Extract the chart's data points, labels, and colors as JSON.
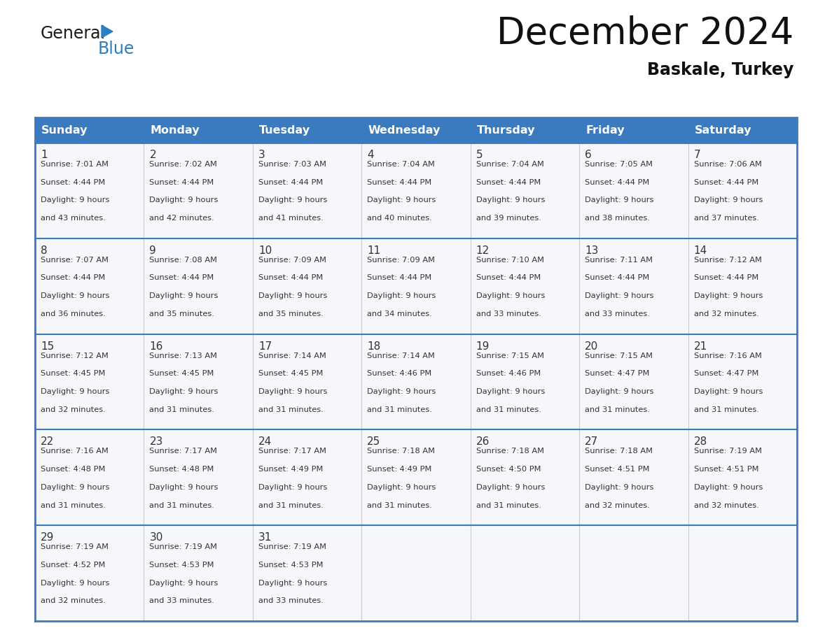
{
  "title": "December 2024",
  "subtitle": "Baskale, Turkey",
  "header_bg_color": "#3a7abf",
  "header_text_color": "#ffffff",
  "border_color": "#3a7abf",
  "row_separator_color": "#3a7abf",
  "col_separator_color": "#cccccc",
  "cell_bg_color": "#f5f7fa",
  "text_color": "#333333",
  "days_of_week": [
    "Sunday",
    "Monday",
    "Tuesday",
    "Wednesday",
    "Thursday",
    "Friday",
    "Saturday"
  ],
  "calendar_data": [
    [
      {
        "day": 1,
        "sunrise": "7:01 AM",
        "sunset": "4:44 PM",
        "daylight_hours": 9,
        "daylight_minutes": 43
      },
      {
        "day": 2,
        "sunrise": "7:02 AM",
        "sunset": "4:44 PM",
        "daylight_hours": 9,
        "daylight_minutes": 42
      },
      {
        "day": 3,
        "sunrise": "7:03 AM",
        "sunset": "4:44 PM",
        "daylight_hours": 9,
        "daylight_minutes": 41
      },
      {
        "day": 4,
        "sunrise": "7:04 AM",
        "sunset": "4:44 PM",
        "daylight_hours": 9,
        "daylight_minutes": 40
      },
      {
        "day": 5,
        "sunrise": "7:04 AM",
        "sunset": "4:44 PM",
        "daylight_hours": 9,
        "daylight_minutes": 39
      },
      {
        "day": 6,
        "sunrise": "7:05 AM",
        "sunset": "4:44 PM",
        "daylight_hours": 9,
        "daylight_minutes": 38
      },
      {
        "day": 7,
        "sunrise": "7:06 AM",
        "sunset": "4:44 PM",
        "daylight_hours": 9,
        "daylight_minutes": 37
      }
    ],
    [
      {
        "day": 8,
        "sunrise": "7:07 AM",
        "sunset": "4:44 PM",
        "daylight_hours": 9,
        "daylight_minutes": 36
      },
      {
        "day": 9,
        "sunrise": "7:08 AM",
        "sunset": "4:44 PM",
        "daylight_hours": 9,
        "daylight_minutes": 35
      },
      {
        "day": 10,
        "sunrise": "7:09 AM",
        "sunset": "4:44 PM",
        "daylight_hours": 9,
        "daylight_minutes": 35
      },
      {
        "day": 11,
        "sunrise": "7:09 AM",
        "sunset": "4:44 PM",
        "daylight_hours": 9,
        "daylight_minutes": 34
      },
      {
        "day": 12,
        "sunrise": "7:10 AM",
        "sunset": "4:44 PM",
        "daylight_hours": 9,
        "daylight_minutes": 33
      },
      {
        "day": 13,
        "sunrise": "7:11 AM",
        "sunset": "4:44 PM",
        "daylight_hours": 9,
        "daylight_minutes": 33
      },
      {
        "day": 14,
        "sunrise": "7:12 AM",
        "sunset": "4:44 PM",
        "daylight_hours": 9,
        "daylight_minutes": 32
      }
    ],
    [
      {
        "day": 15,
        "sunrise": "7:12 AM",
        "sunset": "4:45 PM",
        "daylight_hours": 9,
        "daylight_minutes": 32
      },
      {
        "day": 16,
        "sunrise": "7:13 AM",
        "sunset": "4:45 PM",
        "daylight_hours": 9,
        "daylight_minutes": 31
      },
      {
        "day": 17,
        "sunrise": "7:14 AM",
        "sunset": "4:45 PM",
        "daylight_hours": 9,
        "daylight_minutes": 31
      },
      {
        "day": 18,
        "sunrise": "7:14 AM",
        "sunset": "4:46 PM",
        "daylight_hours": 9,
        "daylight_minutes": 31
      },
      {
        "day": 19,
        "sunrise": "7:15 AM",
        "sunset": "4:46 PM",
        "daylight_hours": 9,
        "daylight_minutes": 31
      },
      {
        "day": 20,
        "sunrise": "7:15 AM",
        "sunset": "4:47 PM",
        "daylight_hours": 9,
        "daylight_minutes": 31
      },
      {
        "day": 21,
        "sunrise": "7:16 AM",
        "sunset": "4:47 PM",
        "daylight_hours": 9,
        "daylight_minutes": 31
      }
    ],
    [
      {
        "day": 22,
        "sunrise": "7:16 AM",
        "sunset": "4:48 PM",
        "daylight_hours": 9,
        "daylight_minutes": 31
      },
      {
        "day": 23,
        "sunrise": "7:17 AM",
        "sunset": "4:48 PM",
        "daylight_hours": 9,
        "daylight_minutes": 31
      },
      {
        "day": 24,
        "sunrise": "7:17 AM",
        "sunset": "4:49 PM",
        "daylight_hours": 9,
        "daylight_minutes": 31
      },
      {
        "day": 25,
        "sunrise": "7:18 AM",
        "sunset": "4:49 PM",
        "daylight_hours": 9,
        "daylight_minutes": 31
      },
      {
        "day": 26,
        "sunrise": "7:18 AM",
        "sunset": "4:50 PM",
        "daylight_hours": 9,
        "daylight_minutes": 31
      },
      {
        "day": 27,
        "sunrise": "7:18 AM",
        "sunset": "4:51 PM",
        "daylight_hours": 9,
        "daylight_minutes": 32
      },
      {
        "day": 28,
        "sunrise": "7:19 AM",
        "sunset": "4:51 PM",
        "daylight_hours": 9,
        "daylight_minutes": 32
      }
    ],
    [
      {
        "day": 29,
        "sunrise": "7:19 AM",
        "sunset": "4:52 PM",
        "daylight_hours": 9,
        "daylight_minutes": 32
      },
      {
        "day": 30,
        "sunrise": "7:19 AM",
        "sunset": "4:53 PM",
        "daylight_hours": 9,
        "daylight_minutes": 33
      },
      {
        "day": 31,
        "sunrise": "7:19 AM",
        "sunset": "4:53 PM",
        "daylight_hours": 9,
        "daylight_minutes": 33
      },
      null,
      null,
      null,
      null
    ]
  ],
  "logo_general_color": "#1a1a1a",
  "logo_blue_color": "#2b7fc1",
  "logo_triangle_color": "#2b7fc1",
  "fig_width": 11.88,
  "fig_height": 9.18,
  "dpi": 100
}
